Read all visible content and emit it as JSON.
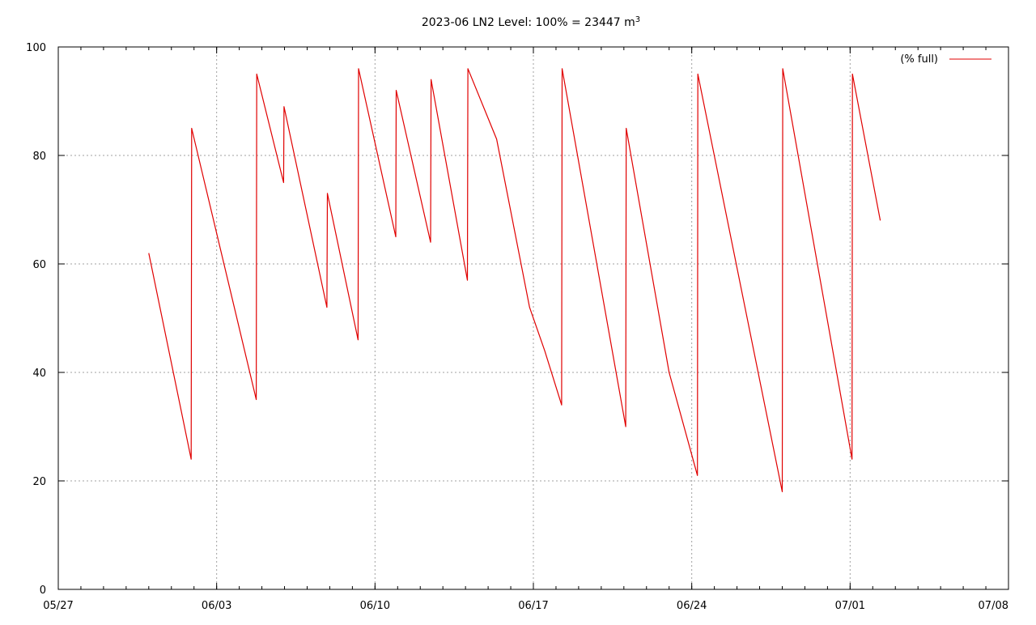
{
  "chart_data": {
    "type": "line",
    "title": "2023-06 LN2 Level: 100% = 23447 m",
    "title_superscript": "3",
    "xlabel": "",
    "ylabel": "",
    "x_range": [
      "05/27",
      "07/08"
    ],
    "x_ticks": [
      "05/27",
      "06/03",
      "06/10",
      "06/17",
      "06/24",
      "07/01",
      "07/08"
    ],
    "ylim": [
      0,
      100
    ],
    "y_ticks": [
      0,
      20,
      40,
      60,
      80,
      100
    ],
    "grid": true,
    "legend_position": "top-right",
    "series": [
      {
        "name": "(% full)",
        "color": "#e00000",
        "points": [
          [
            "05/31 00:00",
            62
          ],
          [
            "06/01 21:00",
            24
          ],
          [
            "06/01 21:30",
            85
          ],
          [
            "06/04 18:00",
            35
          ],
          [
            "06/04 18:30",
            95
          ],
          [
            "06/05 23:00",
            75
          ],
          [
            "06/05 23:30",
            89
          ],
          [
            "06/07 21:00",
            52
          ],
          [
            "06/07 21:30",
            73
          ],
          [
            "06/09 06:00",
            46
          ],
          [
            "06/09 06:30",
            96
          ],
          [
            "06/10 22:00",
            65
          ],
          [
            "06/10 22:30",
            92
          ],
          [
            "06/12 11:00",
            64
          ],
          [
            "06/12 11:30",
            94
          ],
          [
            "06/14 02:00",
            57
          ],
          [
            "06/14 02:30",
            96
          ],
          [
            "06/15 09:00",
            83
          ],
          [
            "06/16 20:00",
            52
          ],
          [
            "06/17 12:00",
            44
          ],
          [
            "06/18 06:00",
            34
          ],
          [
            "06/18 06:30",
            96
          ],
          [
            "06/21 02:00",
            30
          ],
          [
            "06/21 02:30",
            85
          ],
          [
            "06/23 00:00",
            40
          ],
          [
            "06/24 06:00",
            21
          ],
          [
            "06/24 06:30",
            95
          ],
          [
            "06/28 00:00",
            18
          ],
          [
            "06/28 00:30",
            96
          ],
          [
            "07/01 02:00",
            24
          ],
          [
            "07/01 02:30",
            95
          ],
          [
            "07/02 08:00",
            68
          ]
        ]
      }
    ]
  }
}
